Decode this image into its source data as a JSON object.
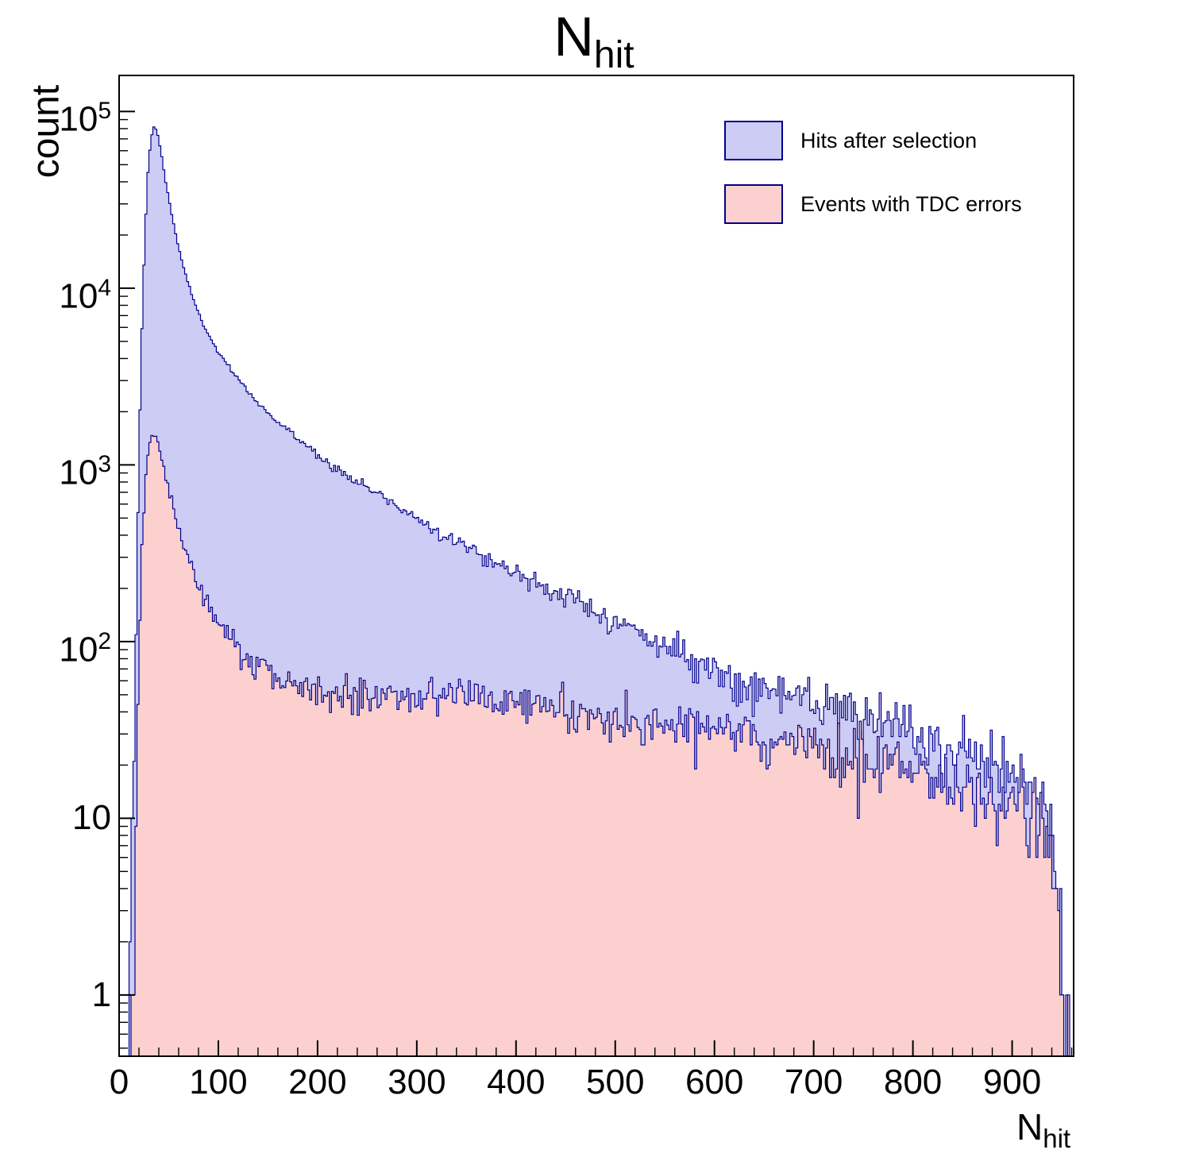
{
  "title": {
    "main": "N",
    "sub": "hit"
  },
  "axes": {
    "x": {
      "label_main": "N",
      "label_sub": "hit",
      "min": 0,
      "max": 962,
      "major_ticks": [
        0,
        100,
        200,
        300,
        400,
        500,
        600,
        700,
        800,
        900
      ],
      "minor_step": 20
    },
    "y": {
      "label": "count",
      "scale": "log",
      "min": 0.45,
      "max": 160000,
      "major_ticks": [
        1,
        10,
        100,
        1000,
        10000,
        100000
      ],
      "tick_labels": [
        {
          "base": "1",
          "exp": ""
        },
        {
          "base": "10",
          "exp": ""
        },
        {
          "base": "10",
          "exp": "2"
        },
        {
          "base": "10",
          "exp": "3"
        },
        {
          "base": "10",
          "exp": "4"
        },
        {
          "base": "10",
          "exp": "5"
        }
      ]
    }
  },
  "legend": [
    {
      "label": "Hits after selection",
      "fill": "#ccccf5",
      "border": "#00008b"
    },
    {
      "label": "Events with TDC errors",
      "fill": "#fbd0ce",
      "border": "#00008b"
    }
  ],
  "chart_data": {
    "type": "histogram",
    "title": "N_hit",
    "xlabel": "N_hit",
    "ylabel": "count",
    "xlim": [
      0,
      962
    ],
    "ylim": [
      0.45,
      160000
    ],
    "y_scale": "log",
    "bin_width": 2,
    "grid": false,
    "legend_position": "top-right",
    "series": [
      {
        "name": "Hits after selection",
        "fill": "#ccccf5",
        "line": "#00008b",
        "anchors": [
          [
            8,
            0.4
          ],
          [
            10,
            0.8
          ],
          [
            12,
            2
          ],
          [
            14,
            8
          ],
          [
            16,
            40
          ],
          [
            18,
            250
          ],
          [
            20,
            1200
          ],
          [
            23,
            6000
          ],
          [
            26,
            20000
          ],
          [
            29,
            45000
          ],
          [
            32,
            70000
          ],
          [
            35,
            82000
          ],
          [
            38,
            78000
          ],
          [
            42,
            60000
          ],
          [
            47,
            40000
          ],
          [
            52,
            28000
          ],
          [
            58,
            19000
          ],
          [
            65,
            13000
          ],
          [
            75,
            8500
          ],
          [
            85,
            6200
          ],
          [
            100,
            4300
          ],
          [
            115,
            3300
          ],
          [
            130,
            2600
          ],
          [
            145,
            2100
          ],
          [
            160,
            1750
          ],
          [
            180,
            1400
          ],
          [
            200,
            1150
          ],
          [
            220,
            950
          ],
          [
            240,
            800
          ],
          [
            260,
            690
          ],
          [
            280,
            590
          ],
          [
            300,
            500
          ],
          [
            320,
            430
          ],
          [
            340,
            370
          ],
          [
            360,
            320
          ],
          [
            380,
            280
          ],
          [
            400,
            245
          ],
          [
            420,
            215
          ],
          [
            440,
            190
          ],
          [
            460,
            170
          ],
          [
            480,
            150
          ],
          [
            500,
            130
          ],
          [
            520,
            115
          ],
          [
            540,
            100
          ],
          [
            560,
            88
          ],
          [
            580,
            78
          ],
          [
            600,
            68
          ],
          [
            630,
            58
          ],
          [
            660,
            52
          ],
          [
            700,
            44
          ],
          [
            740,
            38
          ],
          [
            780,
            32
          ],
          [
            820,
            27
          ],
          [
            860,
            22
          ],
          [
            900,
            17
          ],
          [
            920,
            14
          ],
          [
            935,
            11
          ],
          [
            945,
            5
          ],
          [
            950,
            2
          ],
          [
            954,
            0.8
          ],
          [
            958,
            0.4
          ],
          [
            962,
            0.3
          ]
        ]
      },
      {
        "name": "Events with TDC errors",
        "fill": "#fbd0ce",
        "line": "#00008b",
        "anchors": [
          [
            12,
            0.4
          ],
          [
            14,
            1
          ],
          [
            16,
            4
          ],
          [
            18,
            20
          ],
          [
            20,
            90
          ],
          [
            23,
            350
          ],
          [
            26,
            750
          ],
          [
            29,
            1150
          ],
          [
            32,
            1400
          ],
          [
            35,
            1500
          ],
          [
            38,
            1400
          ],
          [
            42,
            1150
          ],
          [
            47,
            850
          ],
          [
            52,
            650
          ],
          [
            58,
            480
          ],
          [
            65,
            350
          ],
          [
            75,
            240
          ],
          [
            85,
            180
          ],
          [
            100,
            125
          ],
          [
            115,
            98
          ],
          [
            130,
            82
          ],
          [
            145,
            72
          ],
          [
            160,
            65
          ],
          [
            180,
            58
          ],
          [
            200,
            53
          ],
          [
            220,
            50
          ],
          [
            240,
            48
          ],
          [
            260,
            46
          ],
          [
            280,
            48
          ],
          [
            300,
            50
          ],
          [
            320,
            52
          ],
          [
            340,
            52
          ],
          [
            360,
            50
          ],
          [
            380,
            48
          ],
          [
            400,
            47
          ],
          [
            420,
            45
          ],
          [
            440,
            43
          ],
          [
            460,
            41
          ],
          [
            480,
            39
          ],
          [
            500,
            37
          ],
          [
            520,
            36
          ],
          [
            540,
            35
          ],
          [
            560,
            34
          ],
          [
            580,
            33
          ],
          [
            600,
            31
          ],
          [
            630,
            29
          ],
          [
            660,
            28
          ],
          [
            700,
            25
          ],
          [
            740,
            22
          ],
          [
            780,
            20
          ],
          [
            820,
            18
          ],
          [
            860,
            15
          ],
          [
            900,
            12
          ],
          [
            920,
            10
          ],
          [
            935,
            8
          ],
          [
            945,
            4
          ],
          [
            950,
            1.5
          ],
          [
            954,
            0.6
          ],
          [
            958,
            0.3
          ],
          [
            962,
            0.2
          ]
        ]
      }
    ]
  }
}
